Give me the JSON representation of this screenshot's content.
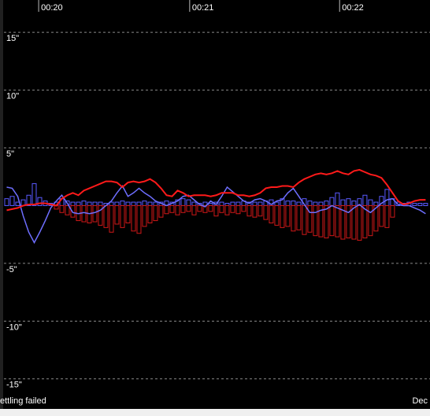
{
  "chart_data": {
    "type": "line",
    "ylim": [
      -17.6,
      17.8
    ],
    "yticks": [
      {
        "value": 15,
        "label": "15\""
      },
      {
        "value": 10,
        "label": "10\""
      },
      {
        "value": 5,
        "label": "5\""
      },
      {
        "value": -5,
        "label": "-5\""
      },
      {
        "value": -10,
        "label": "-10\""
      },
      {
        "value": -15,
        "label": "-15\""
      }
    ],
    "xlim": [
      -0.5,
      76.8
    ],
    "xticks": [
      {
        "value": 5.8,
        "label": "00:20"
      },
      {
        "value": 33.2,
        "label": "00:21"
      },
      {
        "value": 60.4,
        "label": "00:22"
      }
    ],
    "grid": true,
    "series": [
      {
        "type": "bar",
        "color": "#5a5aff",
        "values": [
          0.6,
          0.8,
          0.3,
          0.5,
          0.9,
          1.9,
          0.7,
          0.4,
          0.2,
          0.3,
          0.6,
          0.4,
          0.3,
          0.3,
          0.4,
          0.3,
          0.3,
          0.3,
          0.2,
          0.3,
          0.3,
          0.4,
          0.3,
          0.3,
          0.3,
          0.4,
          0.3,
          0.3,
          0.3,
          0.4,
          0.3,
          0.5,
          0.6,
          0.5,
          0.3,
          0.2,
          0.3,
          0.2,
          0.3,
          0.3,
          0.2,
          0.3,
          0.3,
          0.4,
          0.3,
          0.3,
          0.3,
          0.4,
          0.5,
          0.3,
          0.6,
          0.4,
          0.4,
          0.3,
          0.6,
          0.4,
          0.3,
          0.3,
          0.4,
          0.7,
          1.1,
          0.5,
          0.6,
          0.4,
          0.6,
          0.9,
          0.5,
          0.3,
          0.8,
          1.4,
          0.6,
          0.3,
          0.2,
          0.3,
          0.2,
          0.2,
          0.2
        ]
      },
      {
        "type": "bar",
        "color": "#d01818",
        "values": [
          0,
          0,
          0,
          0,
          0,
          0,
          0,
          0,
          0,
          -0.3,
          -0.6,
          -0.8,
          -1.0,
          -1.3,
          -1.4,
          -1.5,
          -1.4,
          -1.7,
          -1.9,
          -2.3,
          -1.6,
          -1.9,
          -1.5,
          -2.2,
          -2.4,
          -1.8,
          -1.5,
          -1.3,
          -1.0,
          -0.7,
          -0.6,
          -0.8,
          -0.6,
          -0.5,
          -0.8,
          -0.5,
          -0.6,
          -0.5,
          -0.9,
          -0.6,
          -0.8,
          -0.6,
          -0.7,
          -0.5,
          -0.9,
          -1.0,
          -0.9,
          -1.2,
          -1.5,
          -1.7,
          -1.9,
          -1.8,
          -2.2,
          -2.1,
          -2.5,
          -2.3,
          -2.6,
          -2.7,
          -2.8,
          -2.6,
          -2.7,
          -2.9,
          -2.8,
          -2.9,
          -3.0,
          -2.8,
          -2.6,
          -2.2,
          -1.8,
          -1.9,
          -1.0,
          0,
          0,
          0,
          0,
          0,
          0
        ]
      },
      {
        "type": "line",
        "color": "#6e6eff",
        "values": [
          1.6,
          1.5,
          0.8,
          -0.9,
          -2.3,
          -3.2,
          -2.3,
          -1.3,
          -0.2,
          0.4,
          0.9,
          0.2,
          -0.6,
          -0.7,
          -0.6,
          -0.7,
          -0.6,
          -0.4,
          0.0,
          0.4,
          1.1,
          1.7,
          0.8,
          1.1,
          1.5,
          1.1,
          0.8,
          0.4,
          0.2,
          0.0,
          0.2,
          0.4,
          0.8,
          0.9,
          0.5,
          0.1,
          -0.1,
          0.4,
          0.1,
          0.8,
          1.6,
          1.2,
          0.8,
          0.4,
          0.2,
          0.5,
          0.6,
          0.4,
          0.1,
          0.4,
          0.5,
          1.1,
          1.5,
          0.8,
          0.1,
          -0.6,
          -0.6,
          -0.4,
          -0.3,
          0.0,
          -0.2,
          -0.4,
          -0.6,
          -0.2,
          0.1,
          -0.3,
          -0.6,
          -0.2,
          0.2,
          0.5,
          0.6,
          0.1,
          0.0,
          0.0,
          -0.2,
          -0.4,
          -0.7
        ]
      },
      {
        "type": "line",
        "color": "#ff1a1a",
        "values": [
          -0.4,
          -0.3,
          -0.2,
          0.0,
          0.1,
          0.1,
          0.2,
          0.2,
          0.1,
          0.0,
          0.6,
          0.9,
          1.1,
          0.9,
          1.3,
          1.5,
          1.7,
          1.9,
          2.1,
          2.1,
          2.0,
          1.6,
          2.0,
          2.1,
          2.0,
          2.1,
          2.3,
          2.0,
          1.5,
          0.9,
          0.8,
          1.3,
          1.1,
          0.8,
          0.9,
          0.9,
          0.9,
          0.8,
          0.9,
          1.1,
          1.1,
          1.1,
          0.9,
          0.9,
          0.8,
          0.9,
          1.1,
          1.5,
          1.6,
          1.6,
          1.7,
          1.7,
          1.6,
          2.0,
          2.3,
          2.5,
          2.7,
          2.8,
          2.7,
          2.8,
          3.0,
          2.8,
          2.7,
          3.0,
          3.1,
          2.9,
          2.7,
          2.6,
          2.4,
          1.8,
          1.1,
          0.4,
          0.1,
          0.2,
          0.4,
          0.5,
          0.5
        ]
      }
    ],
    "annotations": [
      "ettling failed",
      "Dec"
    ]
  }
}
